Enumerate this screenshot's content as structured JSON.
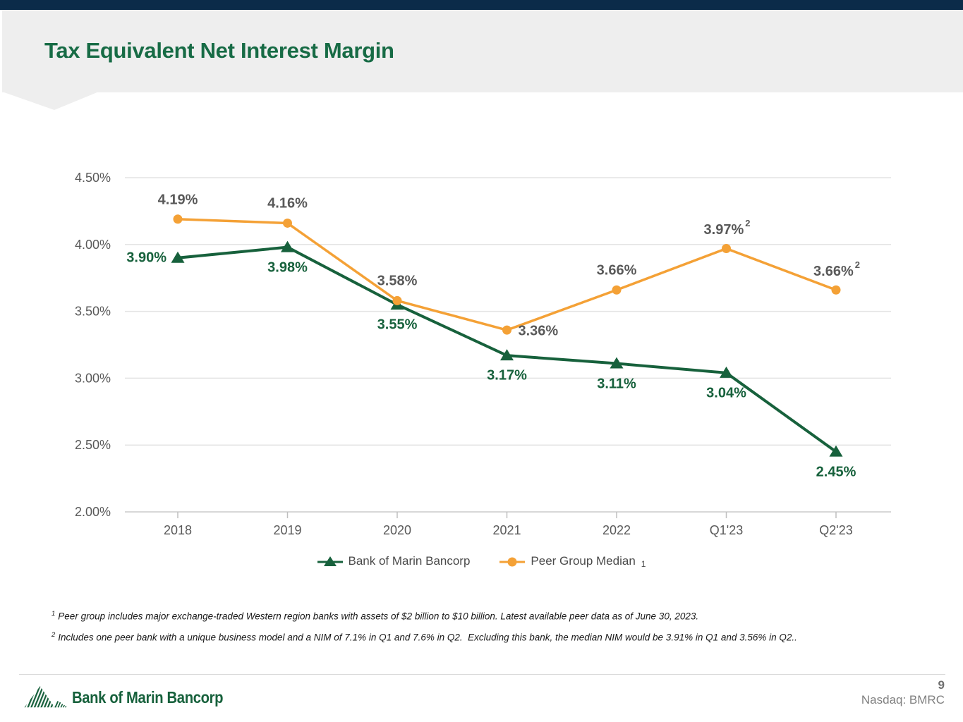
{
  "slide": {
    "title": "Tax Equivalent Net Interest Margin"
  },
  "colors": {
    "navy_bar": "#0b2b49",
    "header_bg": "#eeeeee",
    "title_green": "#176b45",
    "series_green": "#17613c",
    "series_orange": "#f4a136",
    "gray_label": "#595959",
    "footer_gray": "#808080"
  },
  "chart_data": {
    "type": "line",
    "title": "Tax Equivalent Net Interest Margin",
    "categories": [
      "2018",
      "2019",
      "2020",
      "2021",
      "2022",
      "Q1'23",
      "Q2'23"
    ],
    "ylim": [
      2.0,
      4.5
    ],
    "yticks": [
      {
        "value": 4.5,
        "label": "4.50%"
      },
      {
        "value": 4.0,
        "label": "4.00%"
      },
      {
        "value": 3.5,
        "label": "3.50%"
      },
      {
        "value": 3.0,
        "label": "3.00%"
      },
      {
        "value": 2.5,
        "label": "2.50%"
      },
      {
        "value": 2.0,
        "label": "2.00%"
      }
    ],
    "grid": true,
    "legend_position": "bottom",
    "series": [
      {
        "name": "Bank of Marin Bancorp",
        "marker": "triangle",
        "color": "#17613c",
        "values": [
          3.9,
          3.98,
          3.55,
          3.17,
          3.11,
          3.04,
          2.45
        ],
        "labels": [
          "3.90%",
          "3.98%",
          "3.55%",
          "3.17%",
          "3.11%",
          "3.04%",
          "2.45%"
        ],
        "label_pos": [
          "left",
          "below",
          "below",
          "below",
          "below",
          "below",
          "below"
        ],
        "label_sup": [
          "",
          "",
          "",
          "",
          "",
          "",
          ""
        ]
      },
      {
        "name": "Peer Group Median",
        "name_sub": "1",
        "marker": "circle",
        "color": "#f4a136",
        "values": [
          4.19,
          4.16,
          3.58,
          3.36,
          3.66,
          3.97,
          3.66
        ],
        "labels": [
          "4.19%",
          "4.16%",
          "3.58%",
          "3.36%",
          "3.66%",
          "3.97%",
          "3.66%"
        ],
        "label_pos": [
          "above",
          "above",
          "above",
          "right",
          "above",
          "above",
          "above"
        ],
        "label_sup": [
          "",
          "",
          "",
          "",
          "",
          "2",
          "2"
        ]
      }
    ]
  },
  "footnotes": [
    {
      "sup": "1",
      "text": "Peer group includes major exchange-traded Western region banks with assets of $2 billion to $10 billion. Latest available peer data as of June 30, 2023."
    },
    {
      "sup": "2",
      "text": "Includes one peer bank with a unique business model and a NIM of 7.1% in Q1 and 7.6% in Q2.  Excluding this bank, the median NIM would be 3.91% in Q1 and 3.56% in Q2.."
    }
  ],
  "footer": {
    "logo_text": "Bank of Marin Bancorp",
    "page_number": "9",
    "ticker": "Nasdaq: BMRC"
  }
}
